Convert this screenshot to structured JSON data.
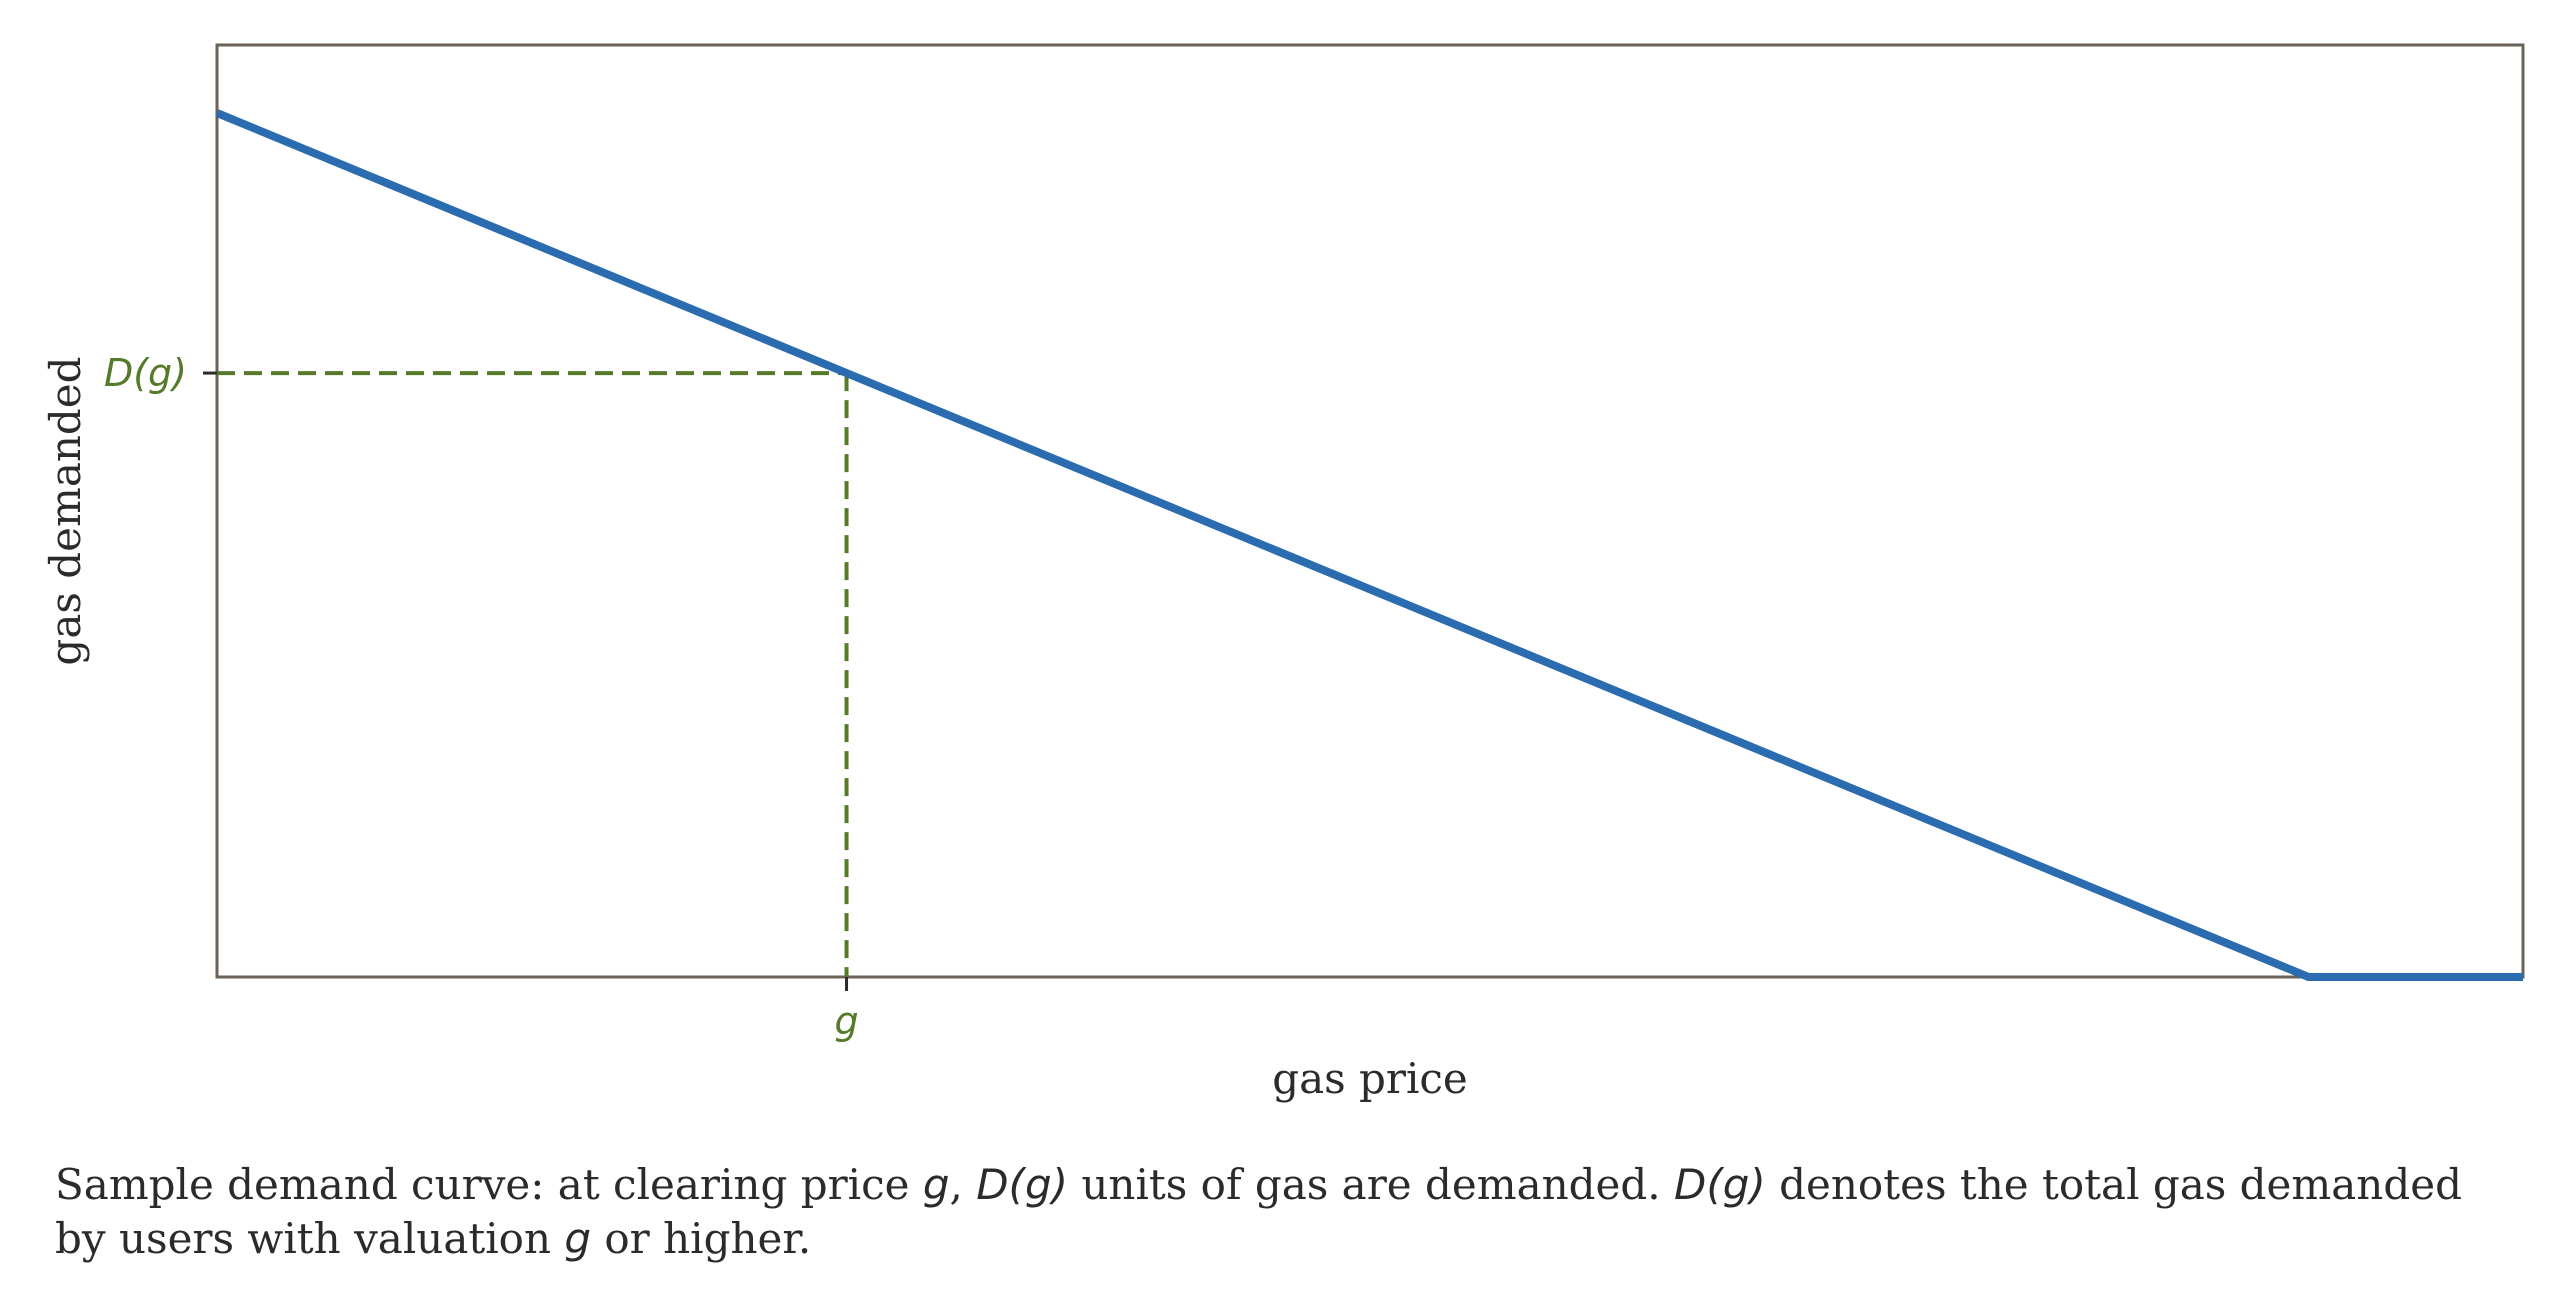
{
  "chart_data": {
    "type": "line",
    "xlabel": "gas price",
    "ylabel": "gas demanded",
    "x_range": [
      0,
      1
    ],
    "y_range": [
      0,
      1
    ],
    "grid": false,
    "legend": "none",
    "series": [
      {
        "x": [
          0,
          0.907,
          1
        ],
        "y": [
          0.927,
          0,
          0
        ]
      }
    ],
    "marker": {
      "x": 0.273,
      "y": 0.648,
      "x_tick_label": "g",
      "y_tick_label": "D(g)"
    }
  },
  "colors": {
    "curve": "#2b6cb0",
    "marker": "#557a2a",
    "frame": "#6b6259",
    "text": "#2b2b2b"
  },
  "caption": {
    "t1": "Sample demand curve: at clearing price ",
    "m1": "g",
    "t2": ", ",
    "m2": "D(g)",
    "t3": " units of gas are demanded. ",
    "m3": "D(g)",
    "t4": " denotes the total gas demanded by users with valuation ",
    "m4": "g",
    "t5": " or higher."
  }
}
